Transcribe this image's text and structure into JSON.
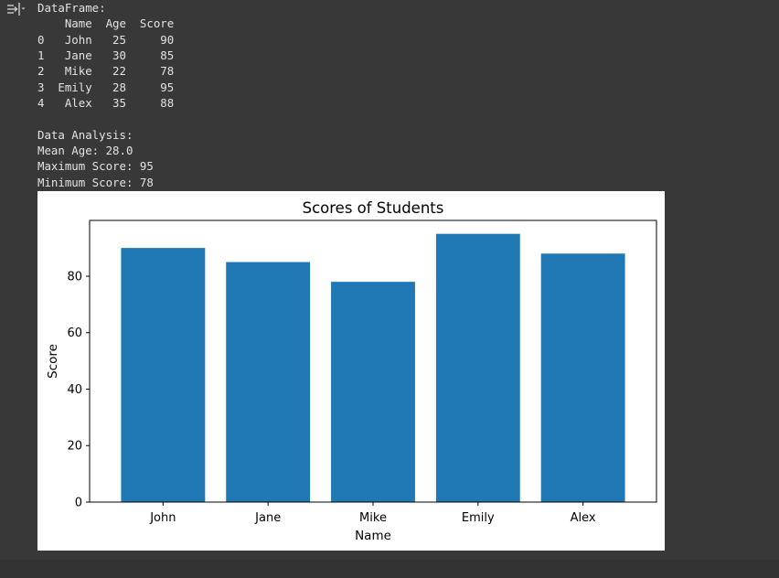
{
  "output": {
    "lines": [
      "DataFrame:",
      "    Name  Age  Score",
      "0   John   25     90",
      "1   Jane   30     85",
      "2   Mike   22     78",
      "3  Emily   28     95",
      "4   Alex   35     88",
      "",
      "Data Analysis:",
      "Mean Age: 28.0",
      "Maximum Score: 95",
      "Minimum Score: 78"
    ]
  },
  "icons": {
    "output_toggle": "output-collapse-icon"
  },
  "colors": {
    "background": "#383838",
    "text": "#e3e3e3",
    "bar": "#1f77b4"
  },
  "chart_data": {
    "type": "bar",
    "title": "Scores of Students",
    "xlabel": "Name",
    "ylabel": "Score",
    "categories": [
      "John",
      "Jane",
      "Mike",
      "Emily",
      "Alex"
    ],
    "values": [
      90,
      85,
      78,
      95,
      88
    ],
    "ylim": [
      0,
      99.75
    ],
    "yticks": [
      0,
      20,
      40,
      60,
      80
    ],
    "grid": false,
    "legend": "none"
  }
}
